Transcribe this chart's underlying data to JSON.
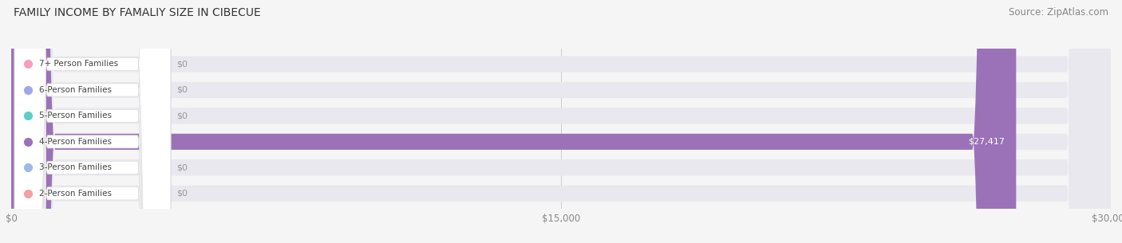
{
  "title": "FAMILY INCOME BY FAMALIY SIZE IN CIBECUE",
  "source": "Source: ZipAtlas.com",
  "categories": [
    "2-Person Families",
    "3-Person Families",
    "4-Person Families",
    "5-Person Families",
    "6-Person Families",
    "7+ Person Families"
  ],
  "values": [
    0,
    0,
    27417,
    0,
    0,
    0
  ],
  "bar_colors": [
    "#f4a0a0",
    "#a0b8e8",
    "#9b72b8",
    "#5ecec8",
    "#a0a8e8",
    "#f4a0bc"
  ],
  "value_labels": [
    "$0",
    "$0",
    "$27,417",
    "$0",
    "$0",
    "$0"
  ],
  "xlim": [
    0,
    30000
  ],
  "xticks": [
    0,
    15000,
    30000
  ],
  "xtick_labels": [
    "$0",
    "$15,000",
    "$30,000"
  ],
  "background_color": "#f5f5f5",
  "title_fontsize": 10,
  "source_fontsize": 8.5,
  "bar_height": 0.62,
  "figsize": [
    14.06,
    3.05
  ],
  "dpi": 100
}
